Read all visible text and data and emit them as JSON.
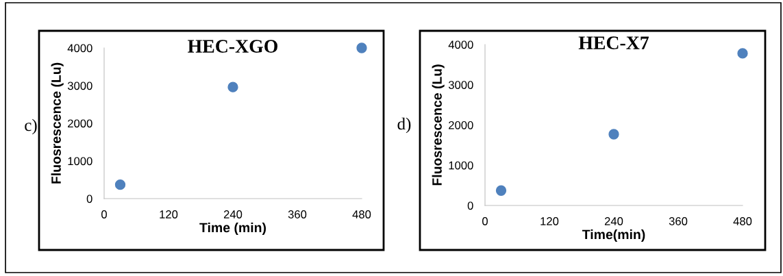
{
  "chart_data": [
    {
      "type": "scatter",
      "title": "HEC-XGO",
      "xlabel": "Time (min)",
      "ylabel": "Fluosrescence (Lu)",
      "annotations": [
        "c)"
      ],
      "x": [
        30,
        240,
        480
      ],
      "values": [
        370,
        2960,
        4000
      ],
      "color": "#4f81bd",
      "marker": "circle",
      "xlim": [
        0,
        480
      ],
      "xticks": [
        0,
        120,
        240,
        360,
        480
      ],
      "ylim": [
        0,
        4000
      ],
      "yticks": [
        0,
        1000,
        2000,
        3000,
        4000
      ],
      "grid": false,
      "legend": false
    },
    {
      "type": "scatter",
      "title": "HEC-X7",
      "xlabel": "Time(min)",
      "ylabel": "Fluosrescence (Lu)",
      "annotations": [
        "d)"
      ],
      "x": [
        30,
        240,
        480
      ],
      "values": [
        370,
        1770,
        3780
      ],
      "color": "#4f81bd",
      "marker": "circle",
      "xlim": [
        0,
        480
      ],
      "xticks": [
        0,
        120,
        240,
        360,
        480
      ],
      "ylim": [
        0,
        4000
      ],
      "yticks": [
        0,
        1000,
        2000,
        3000,
        4000
      ],
      "grid": false,
      "legend": false
    }
  ]
}
